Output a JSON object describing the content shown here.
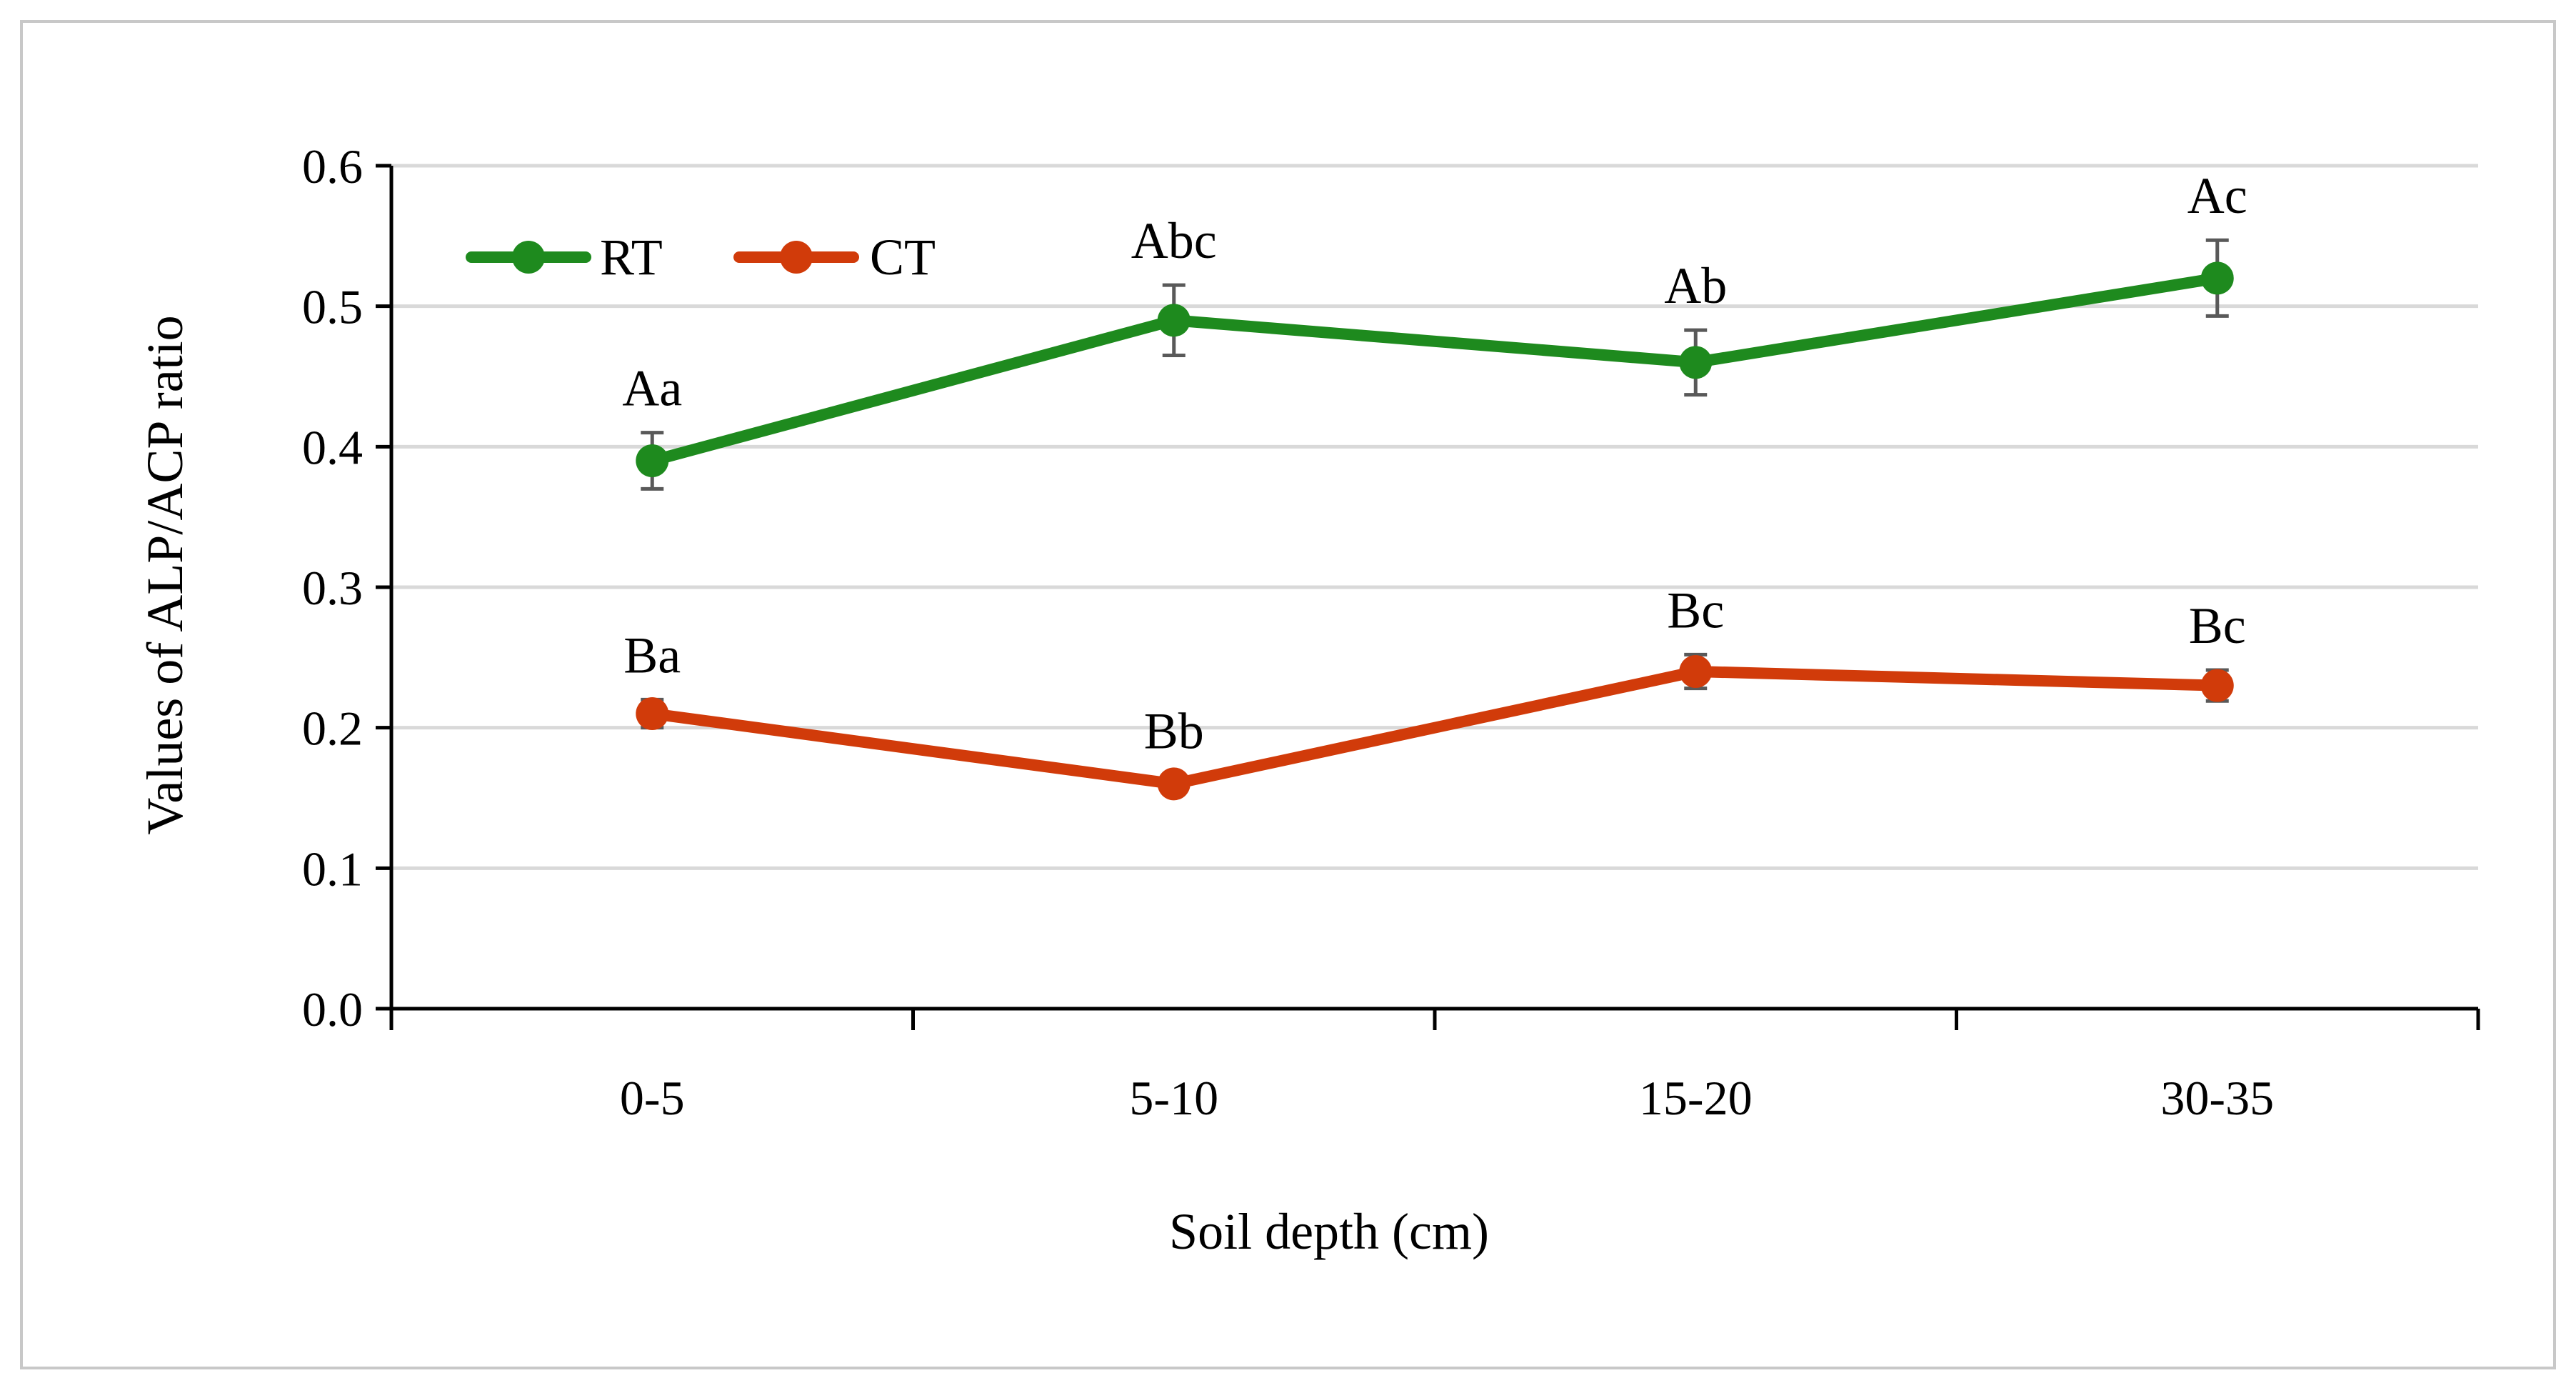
{
  "chart_data": {
    "type": "line",
    "title": "",
    "xlabel": "Soil depth (cm)",
    "ylabel": "Values of ALP/ACP ratio",
    "categories": [
      "0-5",
      "5-10",
      "15-20",
      "30-35"
    ],
    "ylim": [
      0.0,
      0.6
    ],
    "yticks": [
      "0.0",
      "0.1",
      "0.2",
      "0.3",
      "0.4",
      "0.5",
      "0.6"
    ],
    "grid": true,
    "legend_position": "top-left",
    "series": [
      {
        "name": "RT",
        "color": "#1e8a1e",
        "values": [
          0.39,
          0.49,
          0.46,
          0.52
        ],
        "errors": [
          0.02,
          0.025,
          0.023,
          0.027
        ],
        "labels": [
          "Aa",
          "Abc",
          "Ab",
          "Ac"
        ]
      },
      {
        "name": "CT",
        "color": "#d13b0a",
        "values": [
          0.21,
          0.16,
          0.24,
          0.23
        ],
        "errors": [
          0.01,
          0.006,
          0.012,
          0.011
        ],
        "labels": [
          "Ba",
          "Bb",
          "Bc",
          "Bc"
        ]
      }
    ]
  }
}
